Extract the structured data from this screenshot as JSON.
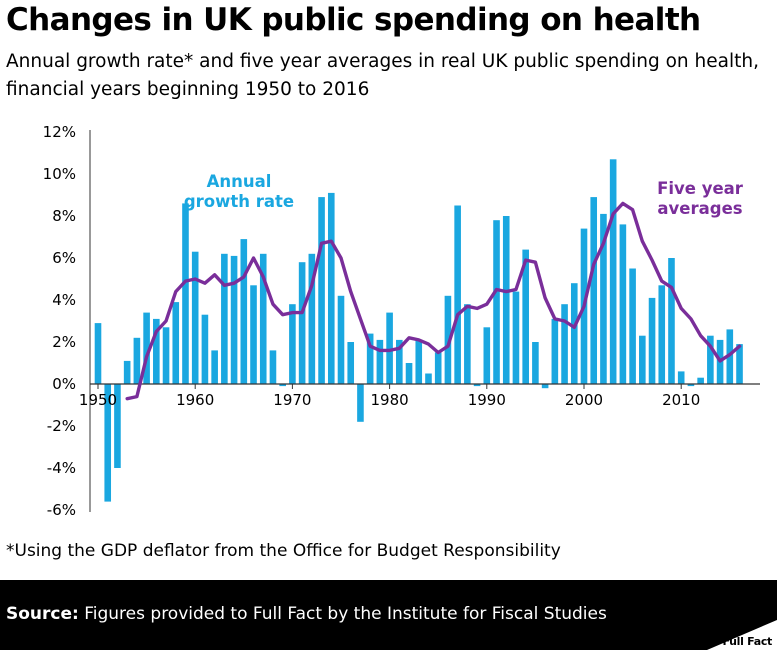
{
  "title": "Changes in UK public spending on health",
  "subtitle": "Annual growth rate* and five year averages in real UK public spending on health, financial years beginning 1950 to 2016",
  "footnote": "*Using the GDP deflator from the Office for Budget Responsibility",
  "source_label": "Source:",
  "source_text": " Figures provided to Full Fact by the Institute for Fiscal Studies",
  "logo_text": "Full Fact",
  "colors": {
    "bar": "#1aa7e0",
    "line": "#7a2e9a",
    "axis": "#333333"
  },
  "chart_data": {
    "type": "bar",
    "title": "Changes in UK public spending on health",
    "xlabel": "",
    "ylabel": "",
    "ylim": [
      -6,
      12
    ],
    "y_ticks": [
      -6,
      -4,
      -2,
      0,
      2,
      4,
      6,
      8,
      10,
      12
    ],
    "y_tick_labels": [
      "-6%",
      "-4%",
      "-2%",
      "0%",
      "2%",
      "4%",
      "6%",
      "8%",
      "10%",
      "12%"
    ],
    "x_ticks": [
      1950,
      1960,
      1970,
      1980,
      1990,
      2000,
      2010
    ],
    "x_tick_labels": [
      "1950",
      "1960",
      "1970",
      "1980",
      "1990",
      "2000",
      "2010"
    ],
    "series": [
      {
        "name": "Annual growth rate",
        "type": "bar",
        "label_lines": [
          "Annual",
          "growth rate"
        ],
        "x": [
          1950,
          1951,
          1952,
          1953,
          1954,
          1955,
          1956,
          1957,
          1958,
          1959,
          1960,
          1961,
          1962,
          1963,
          1964,
          1965,
          1966,
          1967,
          1968,
          1969,
          1970,
          1971,
          1972,
          1973,
          1974,
          1975,
          1976,
          1977,
          1978,
          1979,
          1980,
          1981,
          1982,
          1983,
          1984,
          1985,
          1986,
          1987,
          1988,
          1989,
          1990,
          1991,
          1992,
          1993,
          1994,
          1995,
          1996,
          1997,
          1998,
          1999,
          2000,
          2001,
          2002,
          2003,
          2004,
          2005,
          2006,
          2007,
          2008,
          2009,
          2010,
          2011,
          2012,
          2013,
          2014,
          2015,
          2016
        ],
        "values": [
          2.9,
          -5.6,
          -4.0,
          1.1,
          2.2,
          3.4,
          3.1,
          2.7,
          3.9,
          8.6,
          6.3,
          3.3,
          1.6,
          6.2,
          6.1,
          6.9,
          4.7,
          6.2,
          1.6,
          -0.1,
          3.8,
          5.8,
          6.2,
          8.9,
          9.1,
          4.2,
          2.0,
          -1.8,
          2.4,
          2.1,
          3.4,
          2.1,
          1.0,
          2.1,
          0.5,
          1.5,
          4.2,
          8.5,
          3.8,
          -0.1,
          2.7,
          7.8,
          8.0,
          4.4,
          6.4,
          2.0,
          -0.2,
          3.1,
          3.8,
          4.8,
          7.4,
          8.9,
          8.1,
          10.7,
          7.6,
          5.5,
          2.3,
          4.1,
          4.7,
          6.0,
          0.6,
          -0.1,
          0.3,
          2.3,
          2.1,
          2.6,
          1.9
        ]
      },
      {
        "name": "Five year averages",
        "type": "line",
        "label_lines": [
          "Five year",
          "averages"
        ],
        "x": [
          1953,
          1954,
          1955,
          1956,
          1957,
          1958,
          1959,
          1960,
          1961,
          1962,
          1963,
          1964,
          1965,
          1966,
          1967,
          1968,
          1969,
          1970,
          1971,
          1972,
          1973,
          1974,
          1975,
          1976,
          1977,
          1978,
          1979,
          1980,
          1981,
          1982,
          1983,
          1984,
          1985,
          1986,
          1987,
          1988,
          1989,
          1990,
          1991,
          1992,
          1993,
          1994,
          1995,
          1996,
          1997,
          1998,
          1999,
          2000,
          2001,
          2002,
          2003,
          2004,
          2005,
          2006,
          2007,
          2008,
          2009,
          2010,
          2011,
          2012,
          2013,
          2014,
          2015,
          2016
        ],
        "values": [
          -0.7,
          -0.6,
          1.3,
          2.5,
          3.0,
          4.4,
          4.9,
          5.0,
          4.8,
          5.2,
          4.7,
          4.8,
          5.1,
          6.0,
          5.1,
          3.8,
          3.3,
          3.4,
          3.4,
          4.7,
          6.7,
          6.8,
          6.0,
          4.4,
          3.1,
          1.8,
          1.6,
          1.6,
          1.7,
          2.2,
          2.1,
          1.9,
          1.5,
          1.8,
          3.3,
          3.7,
          3.6,
          3.8,
          4.5,
          4.4,
          4.5,
          5.9,
          5.8,
          4.1,
          3.1,
          3.0,
          2.7,
          3.7,
          5.7,
          6.7,
          8.1,
          8.6,
          8.3,
          6.8,
          5.9,
          4.9,
          4.6,
          3.6,
          3.1,
          2.3,
          1.8,
          1.1,
          1.4,
          1.8
        ]
      }
    ]
  }
}
